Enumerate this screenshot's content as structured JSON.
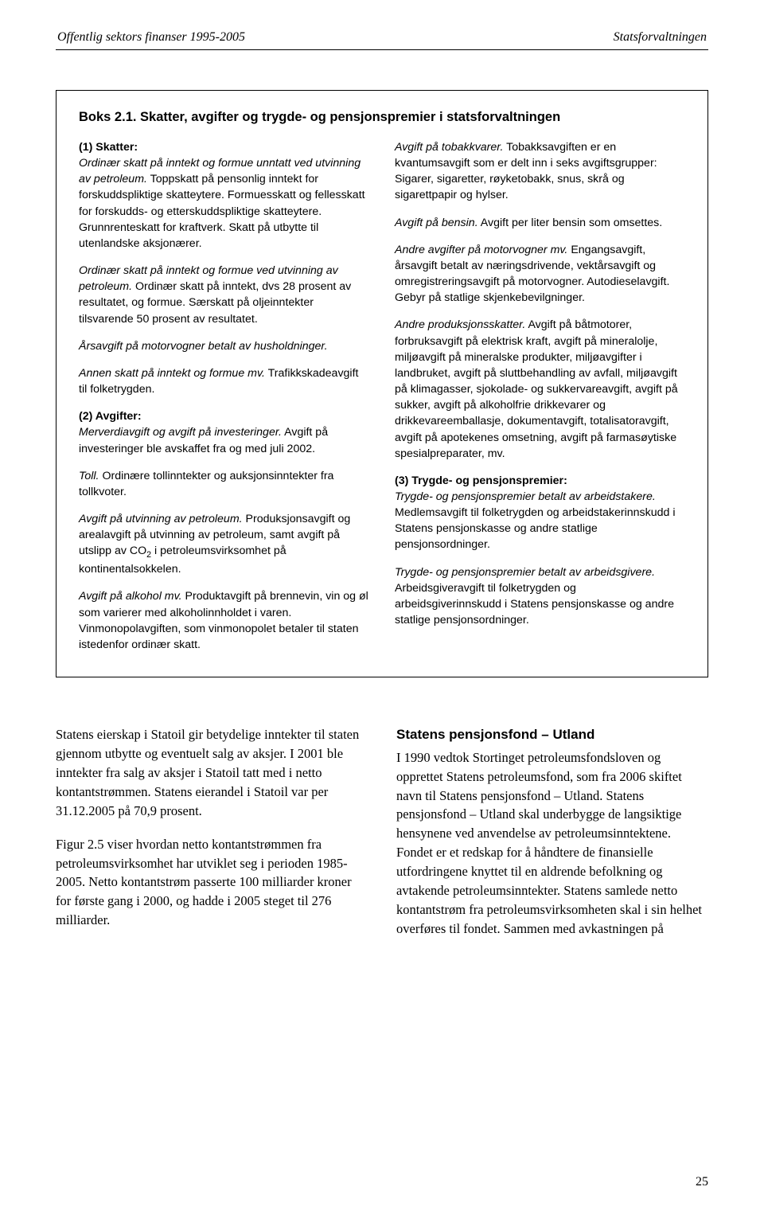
{
  "header": {
    "left": "Offentlig sektors finanser 1995-2005",
    "right": "Statsforvaltningen"
  },
  "box": {
    "title": "Boks 2.1. Skatter, avgifter og trygde- og pensjonspremier i statsforvaltningen",
    "left": {
      "s1_label": "(1) Skatter:",
      "p1a": "Ordinær skatt på inntekt og formue unntatt ved utvinning av petroleum.",
      "p1b": " Toppskatt på pensonlig inntekt for forskuddspliktige skatteytere. Formuesskatt og fellesskatt for forskudds- og etterskuddspliktige skatteytere. Grunnrenteskatt for kraftverk. Skatt på utbytte til utenlandske aksjonærer.",
      "p2a": "Ordinær skatt på inntekt og formue ved utvinning av petroleum.",
      "p2b": " Ordinær skatt på inntekt, dvs 28 prosent av resultatet, og formue. Særskatt på oljeinntekter tilsvarende 50 prosent av resultatet.",
      "p3": "Årsavgift på motorvogner betalt av husholdninger.",
      "p4a": "Annen skatt på inntekt og formue mv.",
      "p4b": " Trafikkskadeavgift til folketrygden.",
      "s2_label": "(2) Avgifter:",
      "p5a": "Merverdiavgift og avgift på investeringer.",
      "p5b": " Avgift på investeringer ble avskaffet fra og med juli 2002.",
      "p6a": "Toll.",
      "p6b": " Ordinære tollinntekter og auksjonsinntekter fra tollkvoter.",
      "p7a": "Avgift på utvinning av petroleum.",
      "p7b": " Produksjonsavgift og arealavgift på utvinning av petroleum, samt avgift på utslipp av CO",
      "p7sub": "2",
      "p7c": " i petroleumsvirksomhet på kontinentalsokkelen.",
      "p8a": "Avgift på alkohol mv.",
      "p8b": " Produktavgift på brennevin, vin og øl som varierer med alkoholinnholdet i varen. Vinmonopolavgiften, som vinmonopolet betaler til staten istedenfor ordinær skatt."
    },
    "right": {
      "p1a": "Avgift på tobakkvarer.",
      "p1b": " Tobakksavgiften er en kvantumsavgift som er delt inn i seks avgiftsgrupper: Sigarer, sigaretter, røyketobakk, snus, skrå og sigarettpapir og hylser.",
      "p2a": "Avgift på bensin.",
      "p2b": " Avgift per liter bensin som omsettes.",
      "p3a": "Andre avgifter på motorvogner mv.",
      "p3b": " Engangsavgift, årsavgift betalt av næringsdrivende, vektårsavgift og omregistreringsavgift på motorvogner. Autodieselavgift. Gebyr på statlige skjenkebevilgninger.",
      "p4a": "Andre produksjonsskatter.",
      "p4b": " Avgift på båtmotorer, forbruksavgift på elektrisk kraft, avgift på mineralolje, miljøavgift på mineralske produkter, miljøavgifter i landbruket, avgift på sluttbehandling av avfall, miljøavgift på klimagasser, sjokolade- og sukkervareavgift, avgift på sukker, avgift på alkoholfrie drikkevarer og drikkevareemballasje, dokumentavgift, totalisatoravgift, avgift på apotekenes omsetning, avgift på farmasøytiske spesialpreparater, mv.",
      "s3_label": "(3) Trygde- og pensjonspremier:",
      "p5a": "Trygde- og pensjonspremier betalt av arbeidstakere.",
      "p5b": " Medlemsavgift til folketrygden og arbeidstakerinnskudd i Statens pensjonskasse og andre statlige pensjonsordninger.",
      "p6a": "Trygde- og pensjonspremier betalt av arbeidsgivere.",
      "p6b": " Arbeidsgiveravgift til folketrygden og arbeidsgiverinnskudd i Statens pensjonskasse og andre statlige pensjonsordninger."
    }
  },
  "bottom": {
    "left": {
      "p1": "Statens eierskap i Statoil gir betydelige inntekter til staten gjennom utbytte og eventuelt salg av aksjer. I 2001 ble inntekter fra salg av aksjer i Statoil tatt med i netto kontantstrømmen. Statens eierandel i Statoil var per 31.12.2005 på 70,9 prosent.",
      "p2": "Figur 2.5 viser hvordan netto kontantstrømmen fra petroleumsvirksomhet har utviklet seg i perioden 1985-2005. Netto kontantstrøm passerte 100 milliarder kroner for første gang i 2000, og hadde i 2005 steget til 276 milliarder."
    },
    "right": {
      "h": "Statens pensjonsfond – Utland",
      "p1": "I 1990 vedtok Stortinget petroleumsfondsloven og opprettet Statens petroleumsfond, som fra 2006 skiftet navn til Statens pensjonsfond – Utland. Statens pensjonsfond – Utland skal underbygge de langsiktige hensynene ved anvendelse av petroleumsinntektene. Fondet er et redskap for å håndtere de finansielle utfordringene knyttet til en aldrende befolkning og avtakende petroleumsinntekter. Statens samlede netto kontantstrøm fra petroleumsvirksomheten skal i sin helhet overføres til fondet. Sammen med avkastningen på"
    }
  },
  "page_num": "25"
}
